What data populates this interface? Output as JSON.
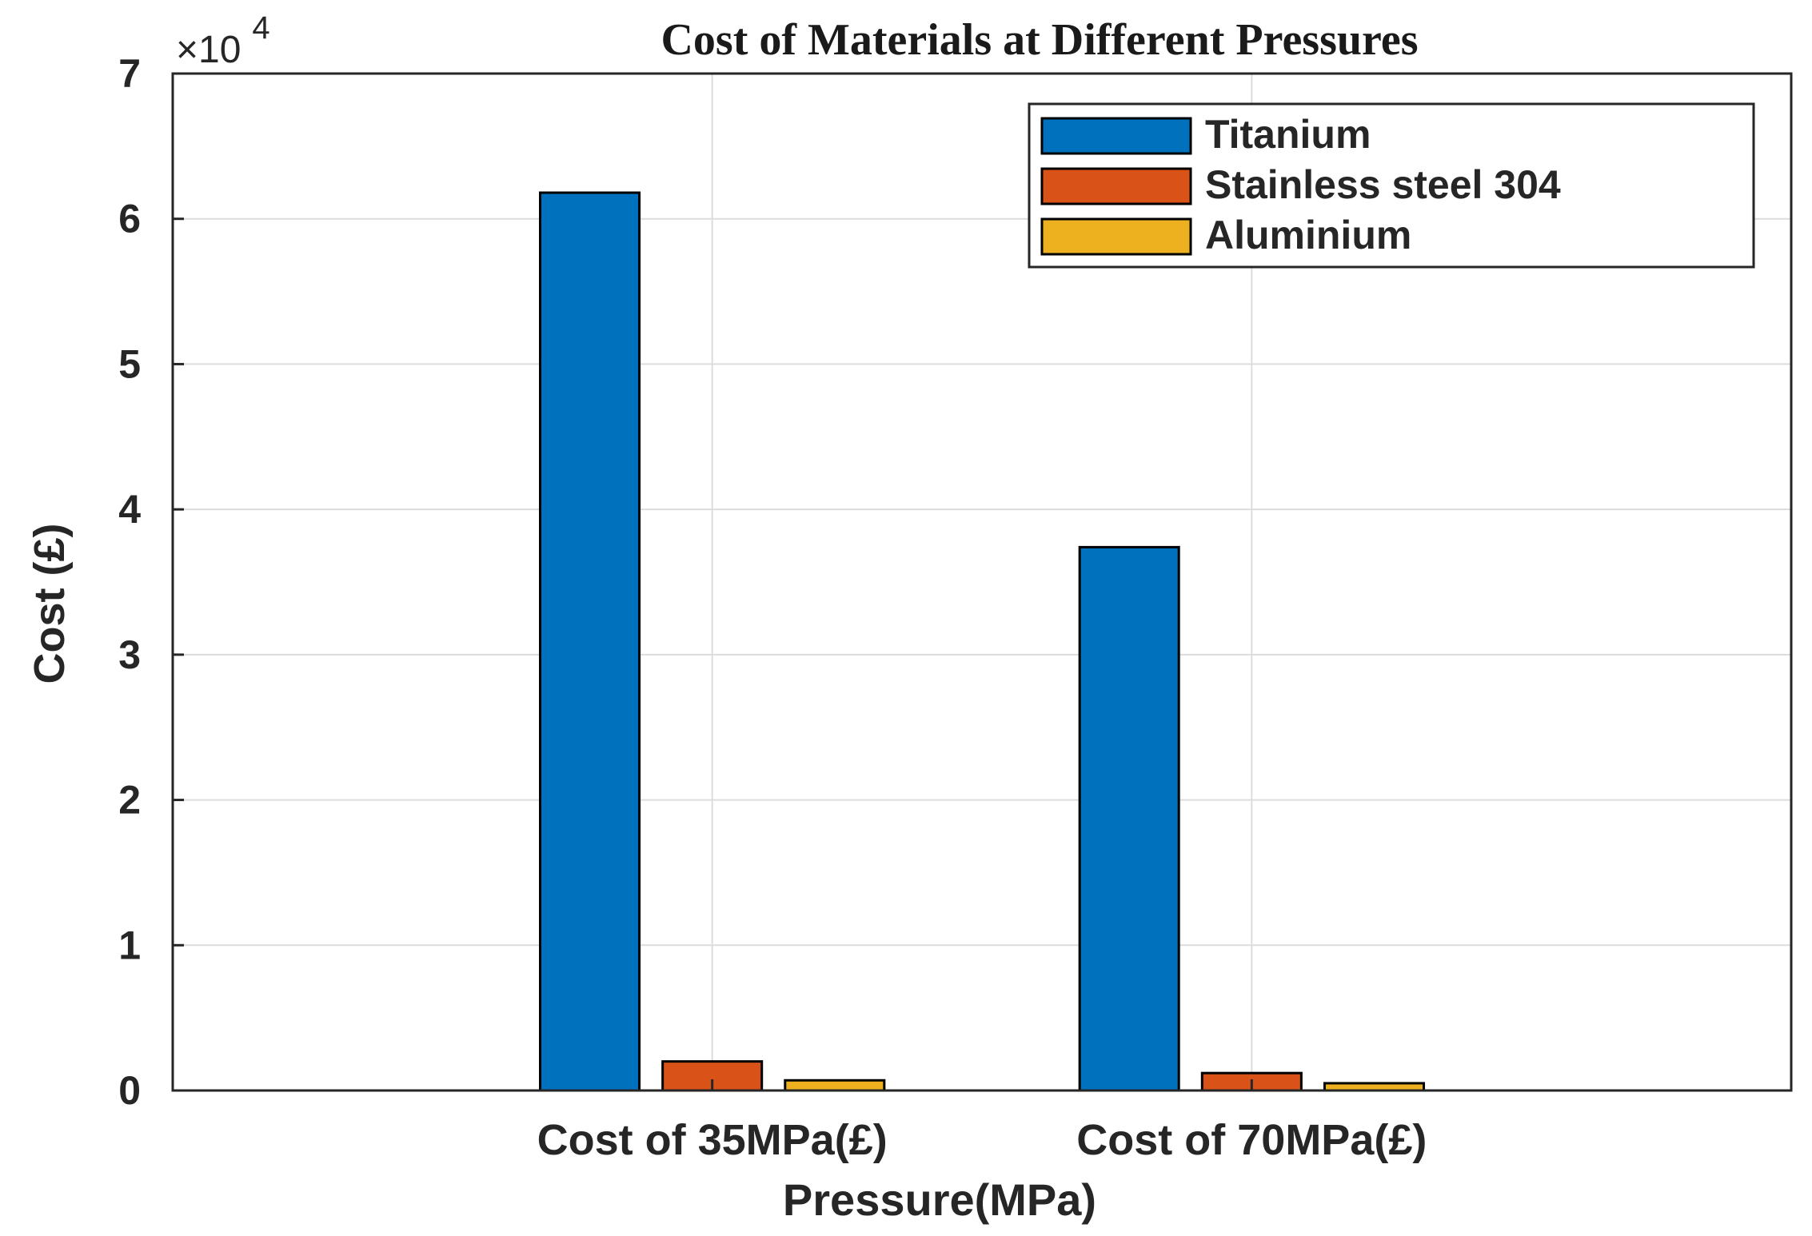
{
  "chart_data": {
    "type": "bar",
    "title": "Cost of Materials at Different Pressures",
    "xlabel": "Pressure(MPa)",
    "ylabel": "Cost (£)",
    "exponent_label": "×10",
    "exponent_power": "4",
    "categories": [
      "Cost of 35MPa(£)",
      "Cost of 70MPa(£)"
    ],
    "series": [
      {
        "name": "Titanium",
        "color": "#0072BD",
        "values": [
          61800,
          37400
        ]
      },
      {
        "name": "Stainless steel 304",
        "color": "#D95319",
        "values": [
          2000,
          1200
        ]
      },
      {
        "name": "Aluminium",
        "color": "#EDB120",
        "values": [
          700,
          500
        ]
      }
    ],
    "ylim": [
      0,
      70000
    ],
    "yticks": [
      0,
      10000,
      20000,
      30000,
      40000,
      50000,
      60000,
      70000
    ],
    "ytick_labels": [
      "0",
      "1",
      "2",
      "3",
      "4",
      "5",
      "6",
      "7"
    ],
    "grid": true,
    "legend_position": "top-right"
  }
}
